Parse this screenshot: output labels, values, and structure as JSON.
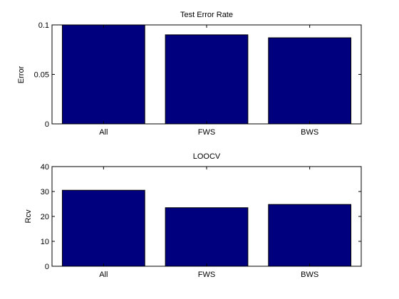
{
  "chart_data": [
    {
      "type": "bar",
      "title": "Test Error Rate",
      "xlabel": "",
      "ylabel": "Error",
      "categories": [
        "All",
        "FWS",
        "BWS"
      ],
      "values": [
        0.1,
        0.09,
        0.087
      ],
      "ylim": [
        0,
        0.1
      ],
      "yticks": [
        0,
        0.05,
        0.1
      ],
      "ytick_labels": [
        "0",
        "0.05",
        "0.1"
      ],
      "grid": false,
      "bar_color": "#00007f",
      "bar_edge_color": "#000000"
    },
    {
      "type": "bar",
      "title": "LOOCV",
      "xlabel": "",
      "ylabel": "Rcv",
      "categories": [
        "All",
        "FWS",
        "BWS"
      ],
      "values": [
        30.5,
        23.5,
        24.8
      ],
      "ylim": [
        0,
        40
      ],
      "yticks": [
        0,
        10,
        20,
        30,
        40
      ],
      "ytick_labels": [
        "0",
        "10",
        "20",
        "30",
        "40"
      ],
      "grid": false,
      "bar_color": "#00007f",
      "bar_edge_color": "#000000"
    }
  ]
}
